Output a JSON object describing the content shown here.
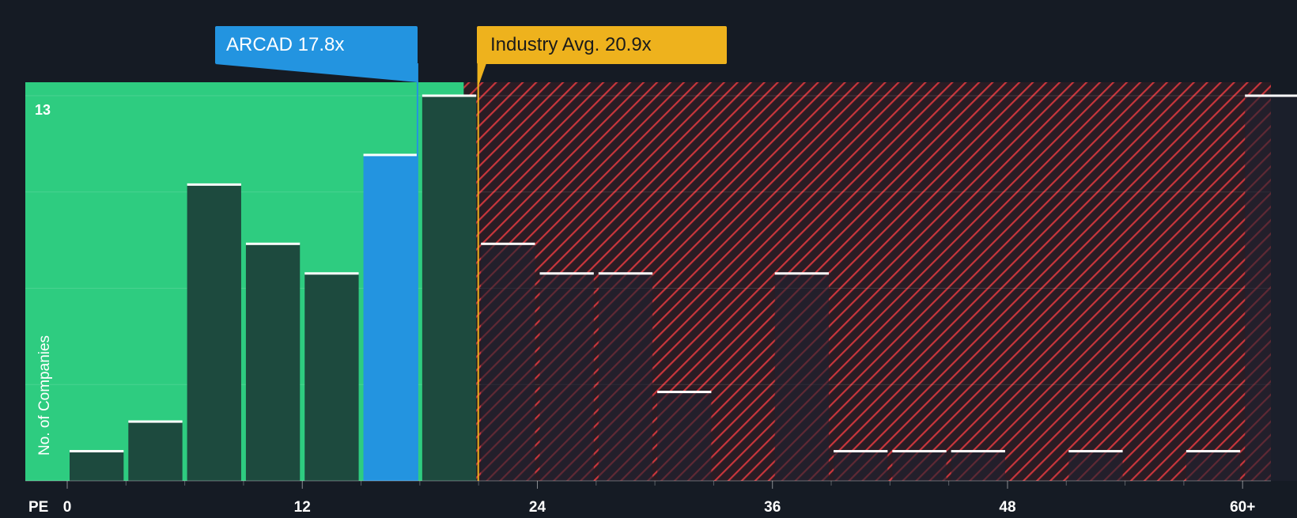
{
  "chart_data": {
    "type": "bar",
    "title": "",
    "xlabel": "PE",
    "ylabel": "No. of Companies",
    "x_ticks": [
      "0",
      "12",
      "24",
      "36",
      "48",
      "60+"
    ],
    "x_tick_values": [
      0,
      12,
      24,
      36,
      48,
      60
    ],
    "y_top_label": "13",
    "ylim": [
      0,
      13
    ],
    "bin_width": 3,
    "bars": [
      {
        "x_start": 0,
        "value": 1
      },
      {
        "x_start": 3,
        "value": 2
      },
      {
        "x_start": 6,
        "value": 10
      },
      {
        "x_start": 9,
        "value": 8
      },
      {
        "x_start": 12,
        "value": 7
      },
      {
        "x_start": 15,
        "value": 11,
        "highlight": true
      },
      {
        "x_start": 18,
        "value": 13
      },
      {
        "x_start": 21,
        "value": 8
      },
      {
        "x_start": 24,
        "value": 7
      },
      {
        "x_start": 27,
        "value": 7
      },
      {
        "x_start": 30,
        "value": 3
      },
      {
        "x_start": 33,
        "value": 0
      },
      {
        "x_start": 36,
        "value": 7
      },
      {
        "x_start": 39,
        "value": 1
      },
      {
        "x_start": 42,
        "value": 1
      },
      {
        "x_start": 45,
        "value": 1
      },
      {
        "x_start": 48,
        "value": 0
      },
      {
        "x_start": 51,
        "value": 1
      },
      {
        "x_start": 54,
        "value": 0
      },
      {
        "x_start": 57,
        "value": 1
      },
      {
        "x_start": 60,
        "value": 13
      }
    ],
    "company": {
      "label": "ARCAD 17.8x",
      "value": 17.8
    },
    "industry_avg": {
      "label": "Industry Avg. 20.9x",
      "value": 20.9
    },
    "fair_zone_end": 20.0
  },
  "colors": {
    "background": "#151b24",
    "fair_zone": "#2ecc80",
    "bar_fill": "#1d4a3e",
    "bar_cap": "#ffffff",
    "company": "#2394e0",
    "industry": "#eeb21d",
    "overvalued_stripe": "#c8363c"
  }
}
